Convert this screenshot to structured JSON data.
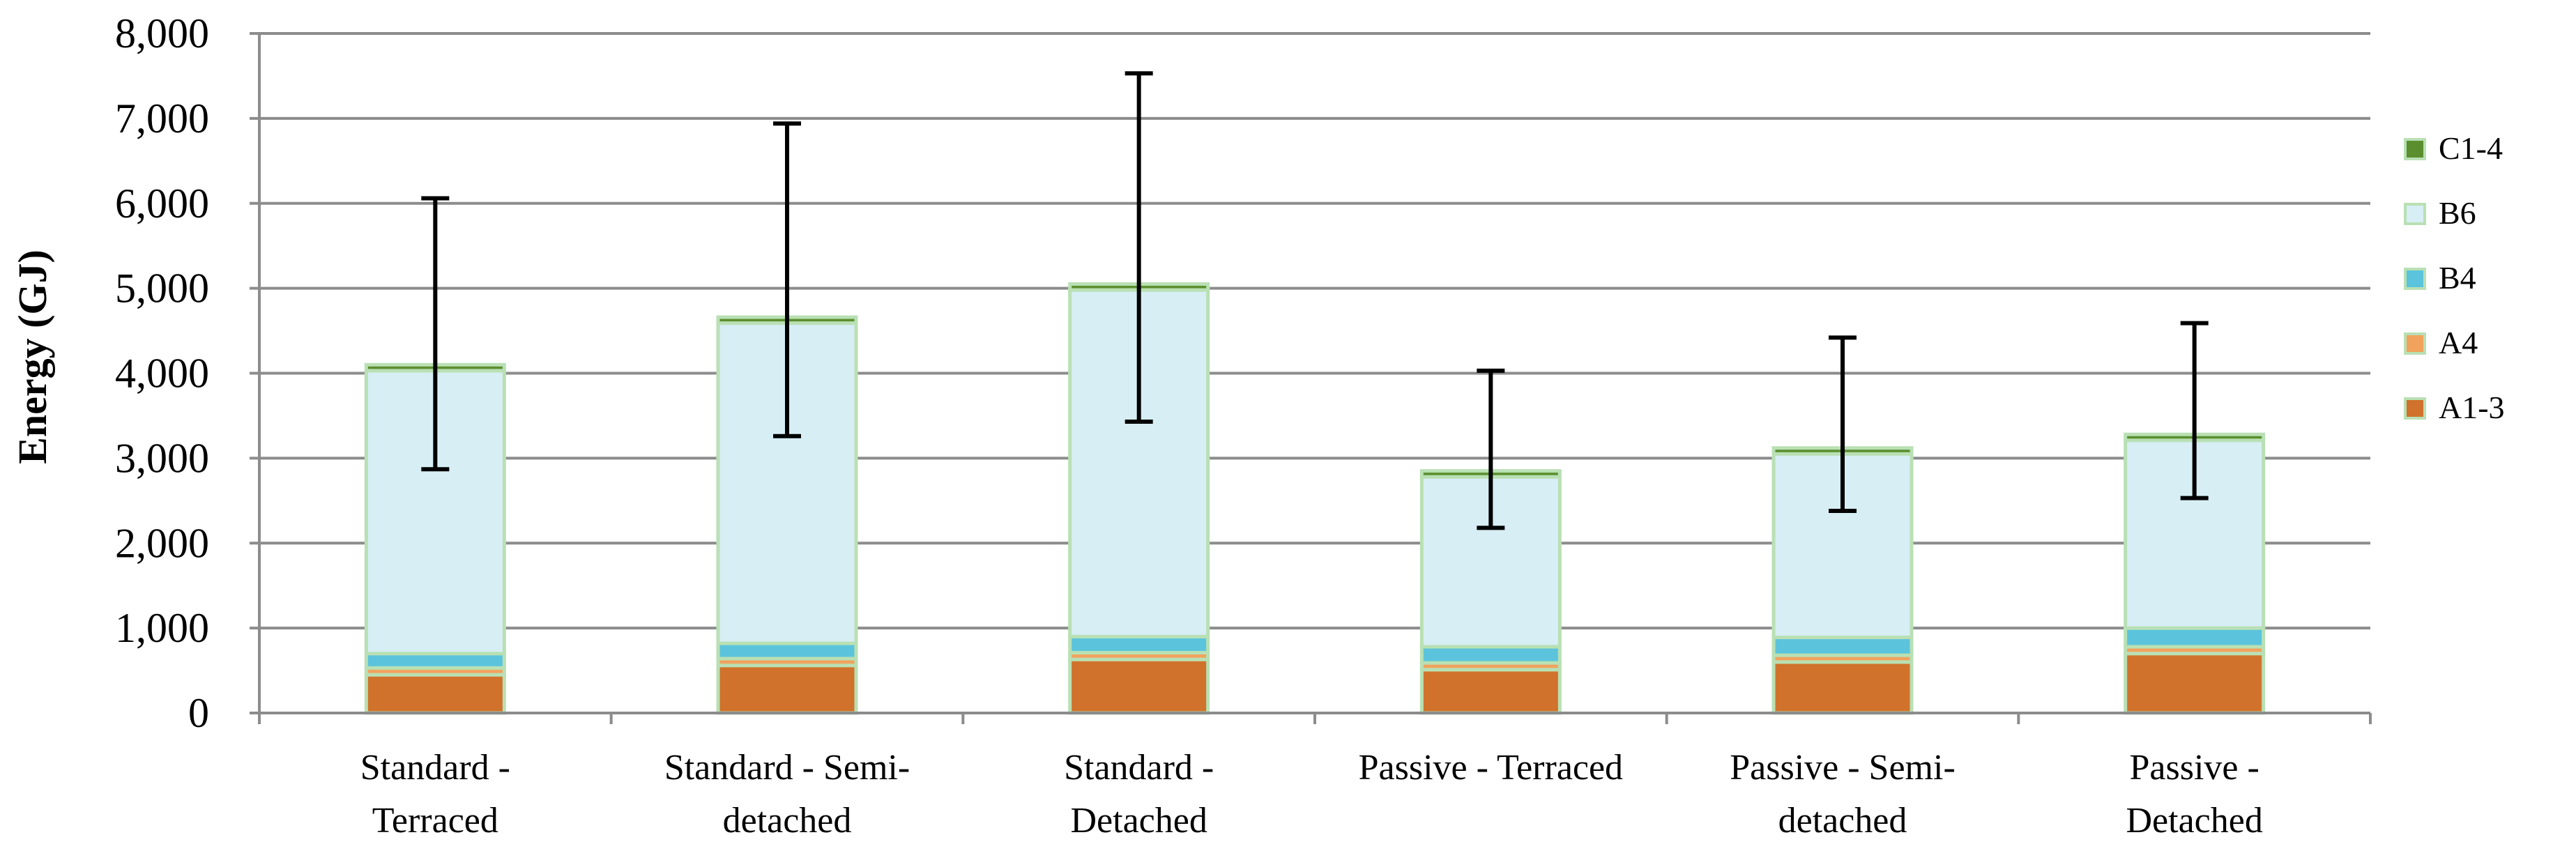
{
  "chart_data": {
    "type": "bar",
    "stacked": true,
    "title": "",
    "xlabel": "",
    "ylabel": "Energy (GJ)",
    "ylim": [
      0,
      8000
    ],
    "yticks": [
      0,
      1000,
      2000,
      3000,
      4000,
      5000,
      6000,
      7000,
      8000
    ],
    "ytick_labels": [
      "0",
      "1,000",
      "2,000",
      "3,000",
      "4,000",
      "5,000",
      "6,000",
      "7,000",
      "8,000"
    ],
    "grid": true,
    "legend_position": "right",
    "categories": [
      [
        "Standard -",
        "Terraced"
      ],
      [
        "Standard - Semi-",
        "detached"
      ],
      [
        "Standard -",
        "Detached"
      ],
      [
        "Passive - Terraced"
      ],
      [
        "Passive - Semi-",
        "detached"
      ],
      [
        "Passive -",
        "Detached"
      ]
    ],
    "series": [
      {
        "name": "A1-3",
        "color": "#D0722C",
        "values": [
          450,
          560,
          630,
          510,
          600,
          700
        ]
      },
      {
        "name": "A4",
        "color": "#F1A35E",
        "values": [
          80,
          80,
          80,
          80,
          80,
          80
        ]
      },
      {
        "name": "B4",
        "color": "#5BC4DC",
        "values": [
          170,
          180,
          190,
          190,
          210,
          220
        ]
      },
      {
        "name": "B6",
        "color": "#D7EEF5",
        "values": [
          3330,
          3770,
          4080,
          2000,
          2160,
          2210
        ]
      },
      {
        "name": "C1-4",
        "color": "#5B8E2E",
        "values": [
          70,
          70,
          70,
          70,
          70,
          70
        ]
      }
    ],
    "error_bars": {
      "low": [
        2870,
        3260,
        3430,
        2180,
        2380,
        2530
      ],
      "high": [
        6060,
        6940,
        7530,
        4030,
        4420,
        4590
      ]
    }
  }
}
